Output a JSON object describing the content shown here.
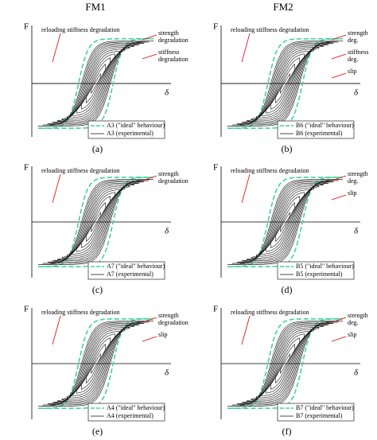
{
  "columns": [
    "FM1",
    "FM2"
  ],
  "panels": [
    {
      "axis_y": "F",
      "axis_x": "δ",
      "annotations": [
        "reloading stiffness degradation",
        "strength degradation",
        "stiffness degradation"
      ],
      "legend": [
        "A3 (\"ideal\" behaviour)",
        "A3 (experimental)"
      ],
      "caption": "(a)"
    },
    {
      "axis_y": "F",
      "axis_x": "δ",
      "annotations": [
        "reloading stiffness degradation",
        "strength deg.",
        "stiffness deg.",
        "slip"
      ],
      "legend": [
        "B6 (\"ideal\" behaviour)",
        "B6 (experimental)"
      ],
      "caption": "(b)"
    },
    {
      "axis_y": "F",
      "axis_x": "δ",
      "annotations": [
        "reloading stiffness degradation",
        "strength degradation"
      ],
      "legend": [
        "A7 (\"ideal\" behaviour)",
        "A7 (experimental)"
      ],
      "caption": "(c)"
    },
    {
      "axis_y": "F",
      "axis_x": "δ",
      "annotations": [
        "reloading stiffness degradation",
        "strength deg.",
        "slip"
      ],
      "legend": [
        "B5 (\"ideal\" behaviour)",
        "B5 (experimental)"
      ],
      "caption": "(d)"
    },
    {
      "axis_y": "F",
      "axis_x": "δ",
      "annotations": [
        "reloading stiffness degradation",
        "strength degradation",
        "slip"
      ],
      "legend": [
        "A4 (\"ideal\" behaviour)",
        "A4 (experimental)"
      ],
      "caption": "(e)"
    },
    {
      "axis_y": "F",
      "axis_x": "δ",
      "annotations": [
        "reloading stiffness degradation",
        "strength deg.",
        "slip"
      ],
      "legend": [
        "B7 (\"ideal\" behaviour)",
        "B7 (experimental)"
      ],
      "caption": "(f)"
    }
  ]
}
